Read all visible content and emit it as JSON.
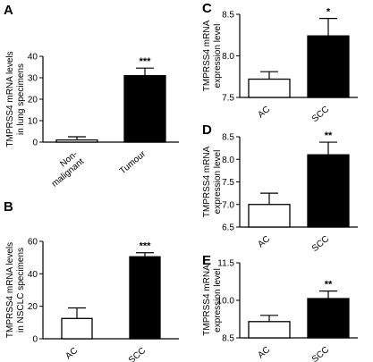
{
  "chart_data": [
    {
      "panel": "A",
      "type": "bar",
      "ylabel": [
        "TMPRSS4 mRNA levels",
        "in lung specimens"
      ],
      "categories": [
        [
          "Non-",
          "malignant"
        ],
        [
          "Tumour"
        ]
      ],
      "values": [
        1,
        31
      ],
      "errors": [
        1.5,
        3.5
      ],
      "bar_fill": [
        "#ffffff",
        "#000000"
      ],
      "ylim": [
        0,
        40
      ],
      "yticks": [
        0,
        10,
        20,
        30,
        40
      ],
      "annotations": [
        "",
        "***"
      ]
    },
    {
      "panel": "B",
      "type": "bar",
      "ylabel": [
        "TMPRSS4 mRNA levels",
        "in NSCLC specimens"
      ],
      "categories": [
        [
          "AC"
        ],
        [
          "SCC"
        ]
      ],
      "values": [
        12.5,
        50.5
      ],
      "errors": [
        6.5,
        2.5
      ],
      "bar_fill": [
        "#ffffff",
        "#000000"
      ],
      "ylim": [
        0,
        60
      ],
      "yticks": [
        0,
        20,
        40,
        60
      ],
      "annotations": [
        "",
        "***"
      ]
    },
    {
      "panel": "C",
      "type": "bar",
      "ylabel": [
        "TMPRSS4 mRNA",
        "expression level"
      ],
      "categories": [
        [
          "AC"
        ],
        [
          "SCC"
        ]
      ],
      "values": [
        7.72,
        8.24
      ],
      "errors": [
        0.09,
        0.21
      ],
      "bar_fill": [
        "#ffffff",
        "#000000"
      ],
      "ylim": [
        7.5,
        8.5
      ],
      "yticks": [
        7.5,
        8.0,
        8.5
      ],
      "ytick_labels": [
        "7.5",
        "8.0",
        "8.5"
      ],
      "annotations": [
        "",
        "*"
      ]
    },
    {
      "panel": "D",
      "type": "bar",
      "ylabel": [
        "TMPRSS4 mRNA",
        "expression level"
      ],
      "categories": [
        [
          "AC"
        ],
        [
          "SCC"
        ]
      ],
      "values": [
        7.0,
        8.1
      ],
      "errors": [
        0.25,
        0.28
      ],
      "bar_fill": [
        "#ffffff",
        "#000000"
      ],
      "ylim": [
        6.5,
        8.5
      ],
      "yticks": [
        6.5,
        7.0,
        7.5,
        8.0,
        8.5
      ],
      "ytick_labels": [
        "6.5",
        "7.0",
        "7.5",
        "8.0",
        "8.5"
      ],
      "annotations": [
        "",
        "**"
      ]
    },
    {
      "panel": "E",
      "type": "bar",
      "ylabel": [
        "TMPRSS4 mRNA",
        "expression level"
      ],
      "categories": [
        [
          "AC"
        ],
        [
          "SCC"
        ]
      ],
      "values": [
        9.15,
        10.07
      ],
      "errors": [
        0.25,
        0.3
      ],
      "bar_fill": [
        "#ffffff",
        "#000000"
      ],
      "ylim": [
        8.5,
        11.5
      ],
      "yticks": [
        8.5,
        10.0,
        11.5
      ],
      "ytick_labels": [
        "8.5",
        "10.0",
        "11.5"
      ],
      "annotations": [
        "",
        "**"
      ]
    }
  ]
}
